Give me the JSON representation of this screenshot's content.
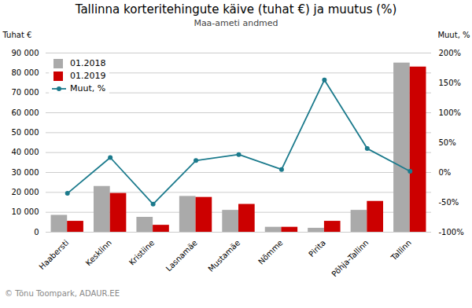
{
  "chart_data": {
    "type": "bar",
    "title": "Tallinna korteritehingute käive (tuhat €) ja muutus (%)",
    "subtitle": "Maa-ameti andmed",
    "ylabel": "Tuhat €",
    "y2label": "Muut, %",
    "footer": "© Tõnu Toompark, ADAUR.EE",
    "categories": [
      "Haabersti",
      "Kesklinn",
      "Kristiine",
      "Lasnamäe",
      "Mustamäe",
      "Nõmme",
      "Pirita",
      "Põhja-Tallinn",
      "Tallinn"
    ],
    "series": [
      {
        "name": "01.2018",
        "color": "#AAAAAA",
        "values": [
          8500,
          23000,
          7500,
          18000,
          11000,
          2500,
          2000,
          11000,
          85000
        ]
      },
      {
        "name": "01.2019",
        "color": "#CC0000",
        "values": [
          5500,
          19500,
          3500,
          17500,
          14000,
          2500,
          5500,
          15500,
          83000
        ]
      },
      {
        "name": "Muut, %",
        "color": "#1B7A8C",
        "type": "line",
        "marker": "o",
        "axis": "y2",
        "values": [
          -35,
          25,
          -53,
          20,
          30,
          5,
          155,
          40,
          2
        ]
      }
    ],
    "ylim": [
      0,
      90000
    ],
    "yticks": [
      0,
      {
        "value": 10000,
        "label": "10 000"
      },
      {
        "value": 20000,
        "label": "20 000"
      },
      {
        "value": 30000,
        "label": "30 000"
      },
      {
        "value": 40000,
        "label": "40 000"
      },
      {
        "value": 50000,
        "label": "50 000"
      },
      {
        "value": 60000,
        "label": "60 000"
      },
      {
        "value": 70000,
        "label": "70 000"
      },
      {
        "value": 80000,
        "label": "80 000"
      },
      {
        "value": 90000,
        "label": "90 000"
      }
    ],
    "y2lim": [
      -100,
      200
    ],
    "y2ticks": [
      {
        "value": -100,
        "label": "-100%"
      },
      {
        "value": -50,
        "label": "-50%"
      },
      {
        "value": 0,
        "label": "0%"
      },
      {
        "value": 50,
        "label": "50%"
      },
      {
        "value": 100,
        "label": "100%"
      },
      {
        "value": 150,
        "label": "150%"
      },
      {
        "value": 200,
        "label": "200%"
      }
    ],
    "grid": true,
    "legend": "upper left"
  }
}
